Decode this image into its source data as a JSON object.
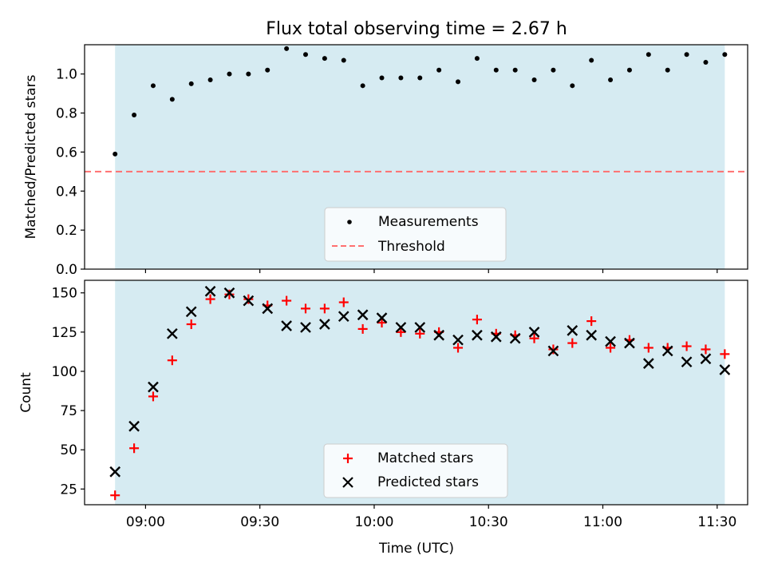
{
  "chart_data": [
    {
      "type": "scatter",
      "title": "Flux total observing time = 2.67 h",
      "ylabel": "Matched/Predicted stars",
      "xlabel": "",
      "ylim": [
        0,
        1.15
      ],
      "yticks": [
        "0.0",
        "0.2",
        "0.4",
        "0.6",
        "0.8",
        "1.0"
      ],
      "xlim_minutes_after_0900": [
        -16,
        158
      ],
      "observing_window_minutes_after_0900": [
        -8,
        152
      ],
      "window_color": "#add8e6",
      "grid": false,
      "legend_position": "lower center",
      "threshold": {
        "name": "Threshold",
        "value": 0.5,
        "color": "#ff7070",
        "style": "dashed"
      },
      "series": [
        {
          "name": "Measurements",
          "color": "#000000",
          "marker": "dot",
          "x": [
            -8,
            -3,
            2,
            7,
            12,
            17,
            22,
            27,
            32,
            37,
            42,
            47,
            52,
            57,
            62,
            67,
            72,
            77,
            82,
            87,
            92,
            97,
            102,
            107,
            112,
            117,
            122,
            127,
            132,
            137,
            142,
            147,
            152
          ],
          "y": [
            0.59,
            0.79,
            0.94,
            0.87,
            0.95,
            0.97,
            1.0,
            1.0,
            1.02,
            1.13,
            1.1,
            1.08,
            1.07,
            0.94,
            0.98,
            0.98,
            0.98,
            1.02,
            0.96,
            1.08,
            1.02,
            1.02,
            0.97,
            1.02,
            0.94,
            1.07,
            0.97,
            1.02,
            1.1,
            1.02,
            1.1,
            1.06,
            1.1
          ]
        }
      ]
    },
    {
      "type": "scatter",
      "title": "",
      "ylabel": "Count",
      "xlabel": "Time (UTC)",
      "ylim": [
        15,
        158
      ],
      "yticks": [
        "25",
        "50",
        "75",
        "100",
        "125",
        "150"
      ],
      "xticks": [
        "09:00",
        "09:30",
        "10:00",
        "10:30",
        "11:00",
        "11:30"
      ],
      "xlim_minutes_after_0900": [
        -16,
        158
      ],
      "observing_window_minutes_after_0900": [
        -8,
        152
      ],
      "window_color": "#add8e6",
      "grid": false,
      "legend_position": "lower center",
      "series": [
        {
          "name": "Matched stars",
          "color": "#ff0000",
          "marker": "plus",
          "x": [
            -8,
            -3,
            2,
            7,
            12,
            17,
            22,
            27,
            32,
            37,
            42,
            47,
            52,
            57,
            62,
            67,
            72,
            77,
            82,
            87,
            92,
            97,
            102,
            107,
            112,
            117,
            122,
            127,
            132,
            137,
            142,
            147,
            152
          ],
          "y": [
            21,
            51,
            84,
            107,
            130,
            146,
            149,
            146,
            142,
            145,
            140,
            140,
            144,
            127,
            131,
            125,
            124,
            125,
            115,
            133,
            124,
            123,
            121,
            114,
            118,
            132,
            115,
            120,
            115,
            115,
            116,
            114,
            111
          ]
        },
        {
          "name": "Predicted stars",
          "color": "#000000",
          "marker": "x",
          "x": [
            -8,
            -3,
            2,
            7,
            12,
            17,
            22,
            27,
            32,
            37,
            42,
            47,
            52,
            57,
            62,
            67,
            72,
            77,
            82,
            87,
            92,
            97,
            102,
            107,
            112,
            117,
            122,
            127,
            132,
            137,
            142,
            147,
            152
          ],
          "y": [
            36,
            65,
            90,
            124,
            138,
            151,
            150,
            145,
            140,
            129,
            128,
            130,
            135,
            136,
            134,
            128,
            128,
            123,
            120,
            123,
            122,
            121,
            125,
            113,
            126,
            123,
            119,
            118,
            105,
            113,
            106,
            108,
            101
          ]
        }
      ]
    }
  ]
}
